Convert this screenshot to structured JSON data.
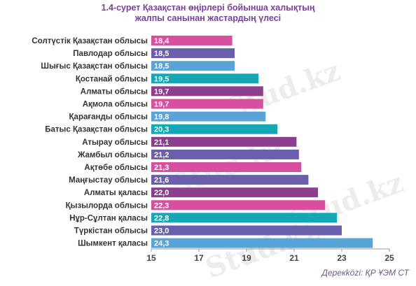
{
  "title": {
    "line1": "1.4-сурет Қазақстан өңірлері бойынша халықтың",
    "line2": "жалпы санынан жастардың үлесі"
  },
  "source": "Дерекközі: ҚР ҰЭМ СТ",
  "watermark": "Stud.kz",
  "chart_data": {
    "type": "bar",
    "orientation": "horizontal",
    "title": "1.4-сурет Қазақстан өңірлері бойынша халықтың жалпы санынан жастардың үлесі",
    "categories": [
      "Солтүстік Қазақстан облысы",
      "Павлодар облысы",
      "Шығыс Қазақстан облысы",
      "Қостанай облысы",
      "Алматы облысы",
      "Ақмола облысы",
      "Қарағанды облысы",
      "Батыс Қазақстан облысы",
      "Атырау облысы",
      "Жамбыл облысы",
      "Ақтөбе облысы",
      "Маңғыстау облысы",
      "Алматы қаласы",
      "Қызылорда облысы",
      "Нұр-Сұлтан қаласы",
      "Түркістан облысы",
      "Шымкент қаласы"
    ],
    "values": [
      18.4,
      18.5,
      18.5,
      19.5,
      19.7,
      19.7,
      19.8,
      20.3,
      21.1,
      21.2,
      21.3,
      21.6,
      22.0,
      22.3,
      22.8,
      23.0,
      24.3
    ],
    "value_labels": [
      "18,4",
      "18,5",
      "18,5",
      "19,5",
      "19,7",
      "19,7",
      "19,8",
      "20,3",
      "21,1",
      "21,2",
      "21,3",
      "21,6",
      "22,0",
      "22,3",
      "22,8",
      "23,0",
      "24,3"
    ],
    "xlim": [
      15,
      25
    ],
    "xticks": [
      15,
      17,
      19,
      21,
      23,
      25
    ],
    "grid": false,
    "colors": [
      "#d94fa0",
      "#6a5fad",
      "#5aa3d6",
      "#13a8b5",
      "#8c3f8f",
      "#d94fa0",
      "#5aa3d6",
      "#13a8b5",
      "#8c3f8f",
      "#6a5fad",
      "#d94fa0",
      "#6a5fad",
      "#8c3f8f",
      "#d94fa0",
      "#13a8b5",
      "#6a5fad",
      "#5aa3d6"
    ]
  }
}
